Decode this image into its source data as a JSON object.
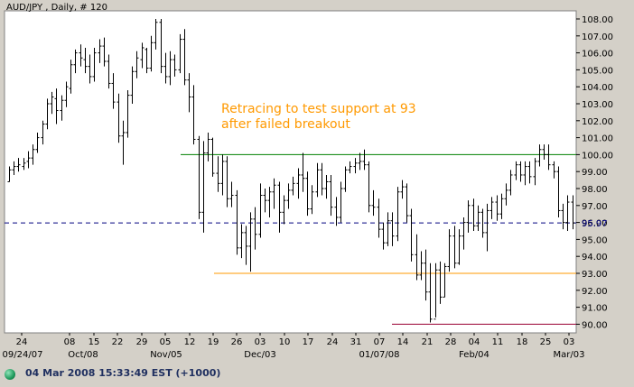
{
  "header": {
    "title": "AUD/JPY , Daily, # 120"
  },
  "annotation": {
    "line1": "Retracing to test support at 93",
    "line2": "after failed breakout"
  },
  "status": {
    "text": "04 Mar 2008 15:33:49  EST (+1000)"
  },
  "colors": {
    "background": "#ffffff",
    "bars": "#000000",
    "resistance": "#008000",
    "support": "#ff9900",
    "low_line": "#990033",
    "current_price": "#000080",
    "annotation": "#ff9900",
    "axis_text": "#000000"
  },
  "chart_data": {
    "type": "ohlc",
    "title": "AUD/JPY , Daily, # 120",
    "ylim": [
      89.6,
      108.4
    ],
    "y_ticks": [
      "90.00",
      "91.00",
      "92.00",
      "93.00",
      "94.00",
      "95.00",
      "96.00",
      "97.00",
      "98.00",
      "99.00",
      "100.00",
      "101.00",
      "102.00",
      "103.00",
      "104.00",
      "105.00",
      "106.00",
      "107.00",
      "108.00"
    ],
    "x_tick_labels": [
      "24",
      "08",
      "15",
      "22",
      "29",
      "05",
      "12",
      "19",
      "26",
      "03",
      "10",
      "17",
      "24",
      "31",
      "07",
      "14",
      "21",
      "28",
      "04",
      "11",
      "18",
      "25",
      "03"
    ],
    "x_period_labels": [
      "09/24/07",
      "Oct/08",
      "Nov/05",
      "Dec/03",
      "01/07/08",
      "Feb/04",
      "Mar/03"
    ],
    "current_price_label": "95.97",
    "reference_lines": [
      {
        "name": "resistance",
        "value": 100.0
      },
      {
        "name": "support",
        "value": 93.0
      },
      {
        "name": "low",
        "value": 90.0
      },
      {
        "name": "current",
        "value": 95.97
      }
    ],
    "bars": [
      [
        98.4,
        99.3,
        98.4,
        99.1
      ],
      [
        99.1,
        99.6,
        98.8,
        99.3
      ],
      [
        99.3,
        99.8,
        99.0,
        99.4
      ],
      [
        99.3,
        99.8,
        99.1,
        99.5
      ],
      [
        99.6,
        100.2,
        99.2,
        99.8
      ],
      [
        99.8,
        100.6,
        99.4,
        100.3
      ],
      [
        100.3,
        101.3,
        100.1,
        101.0
      ],
      [
        101.0,
        102.0,
        100.6,
        101.8
      ],
      [
        101.8,
        103.3,
        101.5,
        103.0
      ],
      [
        103.0,
        103.7,
        102.4,
        103.4
      ],
      [
        103.3,
        103.9,
        101.8,
        102.6
      ],
      [
        102.6,
        103.5,
        102.0,
        103.2
      ],
      [
        103.2,
        104.3,
        102.8,
        104.0
      ],
      [
        103.9,
        105.6,
        103.6,
        105.3
      ],
      [
        105.3,
        106.2,
        104.8,
        106.0
      ],
      [
        106.0,
        106.5,
        105.2,
        105.7
      ],
      [
        105.6,
        106.3,
        104.8,
        105.2
      ],
      [
        105.2,
        105.9,
        104.2,
        104.6
      ],
      [
        104.6,
        106.3,
        104.3,
        106.0
      ],
      [
        106.0,
        106.8,
        105.4,
        106.4
      ],
      [
        106.4,
        106.9,
        105.2,
        105.5
      ],
      [
        105.5,
        105.9,
        103.9,
        104.2
      ],
      [
        104.2,
        104.8,
        102.7,
        103.1
      ],
      [
        103.1,
        103.6,
        100.7,
        101.1
      ],
      [
        101.1,
        102.0,
        99.4,
        101.3
      ],
      [
        101.3,
        103.8,
        101.0,
        103.5
      ],
      [
        103.5,
        105.2,
        103.0,
        104.9
      ],
      [
        104.9,
        106.1,
        104.5,
        105.7
      ],
      [
        105.6,
        106.6,
        105.1,
        106.3
      ],
      [
        106.2,
        106.3,
        104.8,
        105.1
      ],
      [
        105.1,
        107.0,
        104.9,
        106.6
      ],
      [
        106.6,
        108.0,
        106.2,
        107.8
      ],
      [
        107.8,
        108.0,
        104.8,
        105.2
      ],
      [
        105.2,
        106.0,
        104.2,
        104.6
      ],
      [
        104.6,
        106.1,
        104.1,
        105.6
      ],
      [
        105.6,
        105.9,
        104.6,
        105.0
      ],
      [
        105.0,
        107.1,
        104.8,
        106.8
      ],
      [
        106.8,
        107.4,
        104.1,
        104.4
      ],
      [
        104.4,
        104.8,
        102.5,
        103.4
      ],
      [
        103.4,
        104.1,
        100.6,
        100.9
      ],
      [
        100.9,
        101.1,
        96.2,
        96.6
      ],
      [
        96.6,
        100.8,
        95.4,
        100.1
      ],
      [
        100.1,
        101.3,
        99.6,
        100.9
      ],
      [
        100.9,
        101.0,
        98.7,
        98.9
      ],
      [
        98.9,
        99.9,
        97.8,
        98.3
      ],
      [
        98.3,
        100.0,
        97.6,
        99.6
      ],
      [
        99.6,
        99.9,
        96.9,
        97.4
      ],
      [
        97.4,
        98.4,
        96.9,
        97.6
      ],
      [
        97.6,
        97.9,
        94.1,
        94.5
      ],
      [
        94.5,
        95.9,
        93.9,
        95.4
      ],
      [
        95.4,
        95.8,
        93.5,
        94.6
      ],
      [
        94.6,
        96.6,
        93.1,
        96.2
      ],
      [
        96.2,
        96.9,
        94.4,
        95.3
      ],
      [
        95.3,
        98.3,
        95.1,
        97.6
      ],
      [
        97.6,
        98.0,
        96.6,
        97.3
      ],
      [
        97.3,
        98.1,
        96.3,
        97.8
      ],
      [
        97.8,
        98.6,
        96.8,
        98.2
      ],
      [
        98.2,
        98.4,
        95.4,
        96.6
      ],
      [
        96.6,
        97.6,
        95.9,
        97.3
      ],
      [
        97.3,
        98.3,
        96.8,
        97.9
      ],
      [
        97.9,
        98.7,
        97.6,
        98.3
      ],
      [
        98.3,
        99.2,
        97.4,
        98.8
      ],
      [
        98.8,
        100.1,
        97.8,
        98.6
      ],
      [
        98.6,
        99.0,
        96.4,
        96.8
      ],
      [
        96.8,
        98.2,
        96.5,
        97.8
      ],
      [
        97.8,
        99.5,
        97.5,
        99.1
      ],
      [
        99.1,
        99.5,
        97.6,
        98.0
      ],
      [
        98.0,
        98.8,
        97.4,
        98.4
      ],
      [
        98.4,
        98.8,
        96.4,
        96.9
      ],
      [
        96.9,
        97.5,
        95.8,
        96.3
      ],
      [
        96.3,
        98.4,
        96.0,
        98.0
      ],
      [
        98.0,
        99.3,
        97.8,
        99.1
      ],
      [
        99.1,
        99.6,
        98.9,
        99.3
      ],
      [
        99.3,
        99.8,
        98.9,
        99.5
      ],
      [
        99.5,
        100.1,
        99.1,
        99.6
      ],
      [
        99.6,
        100.3,
        99.1,
        99.4
      ],
      [
        99.4,
        99.6,
        96.6,
        97.0
      ],
      [
        97.0,
        97.9,
        96.4,
        96.9
      ],
      [
        96.9,
        97.4,
        95.1,
        95.6
      ],
      [
        95.6,
        96.0,
        94.4,
        94.8
      ],
      [
        94.8,
        96.6,
        94.6,
        96.1
      ],
      [
        96.1,
        96.6,
        94.6,
        95.2
      ],
      [
        95.2,
        98.1,
        94.9,
        97.8
      ],
      [
        97.8,
        98.5,
        97.4,
        98.1
      ],
      [
        98.1,
        98.3,
        96.0,
        96.4
      ],
      [
        96.4,
        96.8,
        93.7,
        94.1
      ],
      [
        94.1,
        95.3,
        92.6,
        92.9
      ],
      [
        92.9,
        94.3,
        92.6,
        93.6
      ],
      [
        93.6,
        94.4,
        91.4,
        91.9
      ],
      [
        91.9,
        93.6,
        90.1,
        90.3
      ],
      [
        90.3,
        93.6,
        90.4,
        93.2
      ],
      [
        93.2,
        93.7,
        91.2,
        91.6
      ],
      [
        91.6,
        93.6,
        91.6,
        93.4
      ],
      [
        93.4,
        95.6,
        93.1,
        95.2
      ],
      [
        95.2,
        95.8,
        93.3,
        93.6
      ],
      [
        93.6,
        95.6,
        93.5,
        95.2
      ],
      [
        95.2,
        96.3,
        94.4,
        96.0
      ],
      [
        96.0,
        97.3,
        95.4,
        97.0
      ],
      [
        97.0,
        97.4,
        95.5,
        95.8
      ],
      [
        95.8,
        97.0,
        95.5,
        96.6
      ],
      [
        96.6,
        96.8,
        95.1,
        95.4
      ],
      [
        95.4,
        97.1,
        94.3,
        96.7
      ],
      [
        96.7,
        97.5,
        96.2,
        97.2
      ],
      [
        97.2,
        97.6,
        96.1,
        96.5
      ],
      [
        96.5,
        97.7,
        96.2,
        97.4
      ],
      [
        97.4,
        98.3,
        97.0,
        97.9
      ],
      [
        97.9,
        99.1,
        97.6,
        98.8
      ],
      [
        98.8,
        99.6,
        98.5,
        99.4
      ],
      [
        99.4,
        99.6,
        98.4,
        98.8
      ],
      [
        98.8,
        99.6,
        98.2,
        99.3
      ],
      [
        99.3,
        99.6,
        98.3,
        98.7
      ],
      [
        98.7,
        99.8,
        98.2,
        99.6
      ],
      [
        99.6,
        100.6,
        99.3,
        100.3
      ],
      [
        100.3,
        100.6,
        99.7,
        100.0
      ],
      [
        100.0,
        100.6,
        99.1,
        99.4
      ],
      [
        99.4,
        99.6,
        98.6,
        99.0
      ],
      [
        99.0,
        99.3,
        96.3,
        96.7
      ],
      [
        96.7,
        97.1,
        95.6,
        96.0
      ],
      [
        96.0,
        97.6,
        95.5,
        97.2
      ],
      [
        97.2,
        97.6,
        95.6,
        95.97
      ]
    ]
  }
}
